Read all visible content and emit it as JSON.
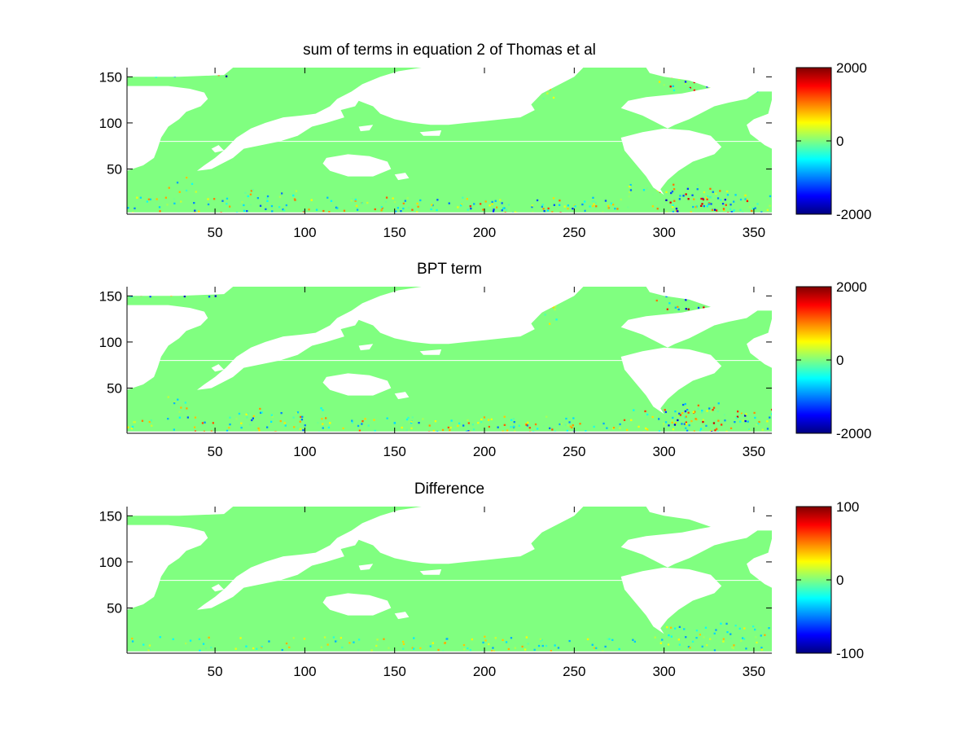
{
  "figure": {
    "colormap": "jet",
    "land_color": "#ffffff",
    "ocean_base_color": "#80ff80",
    "axis_color": "#000000"
  },
  "chart_data": [
    {
      "type": "heatmap",
      "title": "sum of terms in equation 2 of Thomas et al",
      "xlabel": "",
      "ylabel": "",
      "xlim": [
        1,
        360
      ],
      "ylim": [
        1,
        160
      ],
      "xticks": [
        50,
        100,
        150,
        200,
        250,
        300,
        350
      ],
      "yticks": [
        50,
        100,
        150
      ],
      "colorbar": {
        "clim": [
          -2000,
          2000
        ],
        "ticks": [
          -2000,
          0,
          2000
        ],
        "tick_labels": [
          "-2000",
          "0",
          "2000"
        ]
      },
      "field_description": "global ocean field, near zero (green) almost everywhere with strong positive/negative noise along boundary currents and the Southern Ocean"
    },
    {
      "type": "heatmap",
      "title": "BPT term",
      "xlabel": "",
      "ylabel": "",
      "xlim": [
        1,
        360
      ],
      "ylim": [
        1,
        160
      ],
      "xticks": [
        50,
        100,
        150,
        200,
        250,
        300,
        350
      ],
      "yticks": [
        50,
        100,
        150
      ],
      "colorbar": {
        "clim": [
          -2000,
          2000
        ],
        "ticks": [
          -2000,
          0,
          2000
        ],
        "tick_labels": [
          "-2000",
          "0",
          "2000"
        ]
      },
      "field_description": "nearly identical to the sum of terms field"
    },
    {
      "type": "heatmap",
      "title": "Difference",
      "xlabel": "",
      "ylabel": "",
      "xlim": [
        1,
        360
      ],
      "ylim": [
        1,
        160
      ],
      "xticks": [
        50,
        100,
        150,
        200,
        250,
        300,
        350
      ],
      "yticks": [
        50,
        100,
        150
      ],
      "colorbar": {
        "clim": [
          -100,
          100
        ],
        "ticks": [
          -100,
          0,
          100
        ],
        "tick_labels": [
          "-100",
          "0",
          "100"
        ]
      },
      "field_description": "difference close to zero everywhere, faint noise in the Southern Ocean"
    }
  ]
}
